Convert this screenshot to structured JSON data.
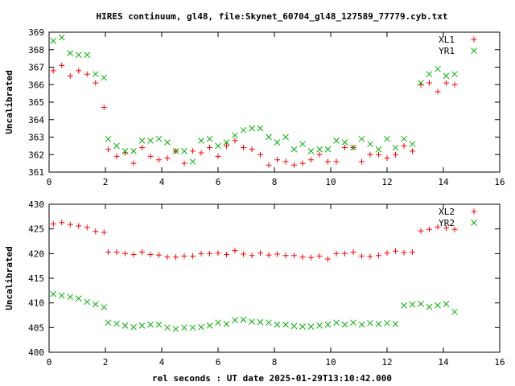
{
  "title": "HIRES continuum, gl48, file:Skynet_60704_gl48_127589_77779.cyb.txt",
  "chart_data": [
    {
      "type": "scatter",
      "ylabel": "Uncalibrated",
      "xlabel": "",
      "xlim": [
        0,
        16
      ],
      "ylim": [
        361,
        369
      ],
      "xticks": [
        0,
        2,
        4,
        6,
        8,
        10,
        12,
        14,
        16
      ],
      "yticks": [
        361,
        362,
        363,
        364,
        365,
        366,
        367,
        368,
        369
      ],
      "legend_position": "top-right",
      "grid": false,
      "series": [
        {
          "name": "XL1",
          "marker": "plus",
          "color": "#ff0000",
          "x": [
            0.15,
            0.45,
            0.75,
            1.05,
            1.35,
            1.65,
            1.95,
            2.1,
            2.4,
            2.7,
            3.0,
            3.3,
            3.6,
            3.9,
            4.2,
            4.5,
            4.8,
            5.1,
            5.4,
            5.7,
            6.0,
            6.3,
            6.6,
            6.9,
            7.2,
            7.5,
            7.8,
            8.1,
            8.4,
            8.7,
            9.0,
            9.3,
            9.6,
            9.9,
            10.2,
            10.5,
            10.8,
            11.1,
            11.4,
            11.7,
            12.0,
            12.3,
            12.6,
            12.9,
            13.2,
            13.5,
            13.8,
            14.1,
            14.4
          ],
          "y": [
            366.8,
            367.1,
            366.5,
            366.8,
            366.6,
            366.1,
            364.7,
            362.3,
            361.9,
            362.1,
            361.5,
            362.4,
            361.9,
            361.7,
            361.8,
            362.2,
            361.5,
            362.2,
            362.1,
            362.4,
            361.9,
            362.5,
            362.8,
            362.4,
            362.3,
            362.0,
            361.4,
            361.7,
            361.6,
            361.4,
            361.5,
            361.7,
            362.0,
            361.6,
            361.6,
            362.4,
            362.4,
            361.6,
            362.0,
            362.0,
            361.8,
            362.0,
            362.5,
            362.2,
            366.0,
            366.1,
            365.6,
            366.1,
            366.0
          ]
        },
        {
          "name": "YR1",
          "marker": "cross",
          "color": "#00b000",
          "x": [
            0.15,
            0.45,
            0.75,
            1.05,
            1.35,
            1.65,
            1.95,
            2.1,
            2.4,
            2.7,
            3.0,
            3.3,
            3.6,
            3.9,
            4.2,
            4.5,
            4.8,
            5.1,
            5.4,
            5.7,
            6.0,
            6.3,
            6.6,
            6.9,
            7.2,
            7.5,
            7.8,
            8.1,
            8.4,
            8.7,
            9.0,
            9.3,
            9.6,
            9.9,
            10.2,
            10.5,
            10.8,
            11.1,
            11.4,
            11.7,
            12.0,
            12.3,
            12.6,
            12.9,
            13.2,
            13.5,
            13.8,
            14.1,
            14.4
          ],
          "y": [
            368.5,
            368.7,
            367.8,
            367.7,
            367.7,
            366.6,
            366.4,
            362.9,
            362.5,
            362.2,
            362.2,
            362.8,
            362.8,
            362.9,
            362.7,
            362.2,
            362.2,
            361.6,
            362.8,
            362.9,
            362.5,
            362.7,
            363.1,
            363.4,
            363.5,
            363.5,
            363.0,
            362.7,
            363.0,
            362.3,
            362.6,
            362.2,
            362.3,
            362.3,
            362.8,
            362.7,
            362.4,
            362.9,
            362.6,
            362.3,
            362.9,
            362.4,
            362.9,
            362.6,
            366.1,
            366.6,
            366.9,
            366.5,
            366.6
          ]
        }
      ]
    },
    {
      "type": "scatter",
      "ylabel": "Uncalibrated",
      "xlabel": "rel seconds : UT date 2025-01-29T13:10:42.000",
      "xlim": [
        0,
        16
      ],
      "ylim": [
        400,
        430
      ],
      "xticks": [
        0,
        2,
        4,
        6,
        8,
        10,
        12,
        14,
        16
      ],
      "yticks": [
        400,
        405,
        410,
        415,
        420,
        425,
        430
      ],
      "legend_position": "top-right",
      "grid": false,
      "series": [
        {
          "name": "XL2",
          "marker": "plus",
          "color": "#ff0000",
          "x": [
            0.15,
            0.45,
            0.75,
            1.05,
            1.35,
            1.65,
            1.95,
            2.1,
            2.4,
            2.7,
            3.0,
            3.3,
            3.6,
            3.9,
            4.2,
            4.5,
            4.8,
            5.1,
            5.4,
            5.7,
            6.0,
            6.3,
            6.6,
            6.9,
            7.2,
            7.5,
            7.8,
            8.1,
            8.4,
            8.7,
            9.0,
            9.3,
            9.6,
            9.9,
            10.2,
            10.5,
            10.8,
            11.1,
            11.4,
            11.7,
            12.0,
            12.3,
            12.6,
            12.9,
            13.2,
            13.5,
            13.8,
            14.1,
            14.4
          ],
          "y": [
            426.0,
            426.3,
            425.9,
            425.6,
            425.3,
            424.5,
            424.3,
            420.3,
            420.3,
            420.0,
            419.8,
            420.3,
            419.8,
            419.7,
            419.3,
            419.3,
            419.5,
            419.5,
            420.0,
            420.0,
            420.1,
            419.8,
            420.6,
            419.9,
            419.6,
            420.1,
            419.7,
            419.9,
            419.6,
            419.6,
            419.3,
            419.2,
            419.5,
            418.9,
            420.0,
            420.0,
            420.3,
            419.5,
            419.4,
            419.6,
            420.1,
            420.5,
            420.2,
            420.3,
            424.6,
            424.9,
            425.4,
            425.2,
            424.9
          ]
        },
        {
          "name": "YR2",
          "marker": "cross",
          "color": "#00b000",
          "x": [
            0.15,
            0.45,
            0.75,
            1.05,
            1.35,
            1.65,
            1.95,
            2.1,
            2.4,
            2.7,
            3.0,
            3.3,
            3.6,
            3.9,
            4.2,
            4.5,
            4.8,
            5.1,
            5.4,
            5.7,
            6.0,
            6.3,
            6.6,
            6.9,
            7.2,
            7.5,
            7.8,
            8.1,
            8.4,
            8.7,
            9.0,
            9.3,
            9.6,
            9.9,
            10.2,
            10.5,
            10.8,
            11.1,
            11.4,
            11.7,
            12.0,
            12.3,
            12.6,
            12.9,
            13.2,
            13.5,
            13.8,
            14.1,
            14.4
          ],
          "y": [
            411.8,
            411.5,
            411.2,
            410.9,
            410.2,
            409.7,
            409.1,
            406.0,
            405.8,
            405.4,
            405.1,
            405.4,
            405.6,
            405.6,
            405.0,
            404.7,
            405.0,
            405.0,
            405.1,
            405.4,
            406.0,
            405.7,
            406.5,
            406.6,
            406.2,
            406.1,
            406.0,
            405.6,
            405.6,
            405.3,
            405.2,
            405.2,
            405.4,
            405.6,
            406.0,
            405.6,
            406.0,
            405.6,
            405.9,
            405.7,
            405.9,
            405.7,
            409.5,
            409.7,
            409.8,
            409.2,
            409.5,
            409.8,
            408.2
          ]
        }
      ]
    }
  ]
}
